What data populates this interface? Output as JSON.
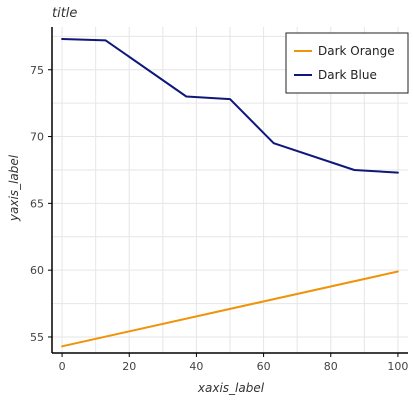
{
  "chart_data": {
    "type": "line",
    "title": "title",
    "xlabel": "xaxis_label",
    "ylabel": "yaxis_label",
    "xlim": [
      -3,
      103
    ],
    "ylim": [
      53.8,
      78.2
    ],
    "xticks": [
      0,
      20,
      40,
      60,
      80,
      100
    ],
    "yticks": [
      55,
      60,
      65,
      70,
      75
    ],
    "grid": true,
    "legend_position": "top-right",
    "series": [
      {
        "name": "Dark Orange",
        "color": "#f0920a",
        "x": [
          0,
          100
        ],
        "y": [
          54.3,
          59.9
        ]
      },
      {
        "name": "Dark Blue",
        "color": "#10177a",
        "x": [
          0,
          13,
          37,
          50,
          63,
          87,
          100
        ],
        "y": [
          77.3,
          77.2,
          73.0,
          72.8,
          69.5,
          67.5,
          67.3
        ]
      }
    ]
  }
}
